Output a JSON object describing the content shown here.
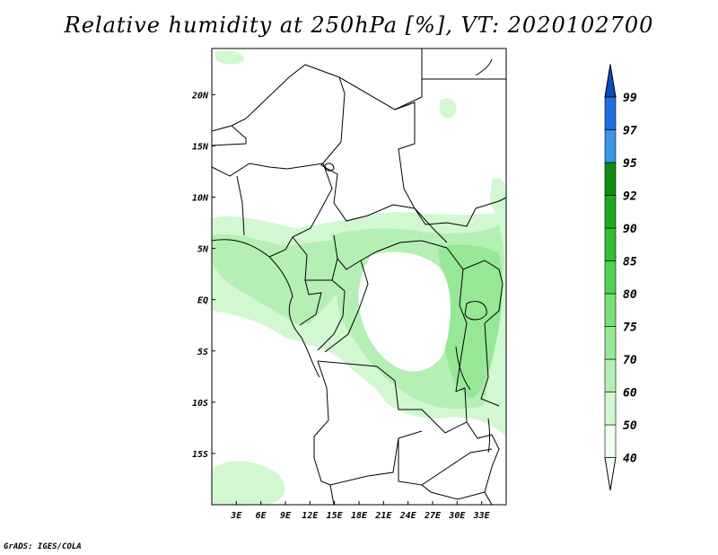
{
  "title": "Relative humidity at 250hPa [%], VT: 2020102700",
  "credit": "GrADS: IGES/COLA",
  "map": {
    "lon_range": [
      0,
      36
    ],
    "lat_range": [
      -20,
      24.5
    ],
    "x_ticks": [
      "3E",
      "6E",
      "9E",
      "12E",
      "15E",
      "18E",
      "21E",
      "24E",
      "27E",
      "30E",
      "33E"
    ],
    "y_ticks": [
      "20N",
      "15N",
      "10N",
      "5N",
      "EQ",
      "5S",
      "10S",
      "15S"
    ]
  },
  "colorbar": {
    "levels": [
      "40",
      "50",
      "60",
      "70",
      "75",
      "80",
      "85",
      "90",
      "92",
      "95",
      "97",
      "99"
    ],
    "colors": [
      "#f0fff0",
      "#d2f8d2",
      "#b4f0b4",
      "#96e896",
      "#78e078",
      "#50d250",
      "#32be32",
      "#1eaa1e",
      "#0f8c0f",
      "#3c96e6",
      "#1e6edc",
      "#0a4bbe"
    ]
  }
}
